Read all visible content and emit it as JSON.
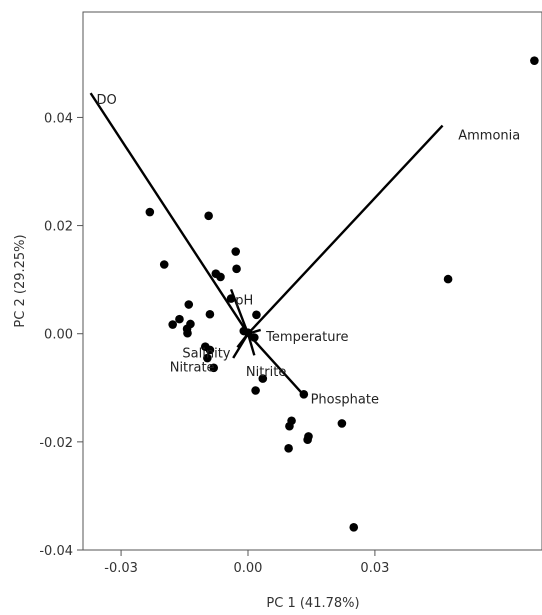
{
  "chart_data": {
    "type": "scatter",
    "title": "",
    "xlabel": "PC 1 (41.78%)",
    "ylabel": "PC 2 (29.25%)",
    "xlim": [
      -0.039,
      0.0695
    ],
    "ylim": [
      -0.04,
      0.0595
    ],
    "xticks": [
      -0.03,
      0.0,
      0.03
    ],
    "xtick_labels": [
      "-0.03",
      "0.00",
      "0.03"
    ],
    "yticks": [
      -0.04,
      -0.02,
      0.0,
      0.02,
      0.04
    ],
    "ytick_labels": [
      "-0.04",
      "-0.02",
      "0.00",
      "0.02",
      "0.04"
    ],
    "grid": false,
    "legend": "none",
    "colors": {
      "points": "#000000",
      "vectors": "#000000",
      "frame": "#555555"
    },
    "points": [
      {
        "x": 0.0677,
        "y": 0.0505
      },
      {
        "x": 0.0473,
        "y": 0.0101
      },
      {
        "x": -0.0232,
        "y": 0.0225
      },
      {
        "x": -0.0198,
        "y": 0.0128
      },
      {
        "x": -0.0093,
        "y": 0.0218
      },
      {
        "x": -0.0029,
        "y": 0.0152
      },
      {
        "x": -0.0027,
        "y": 0.012
      },
      {
        "x": -0.0076,
        "y": 0.0111
      },
      {
        "x": -0.0065,
        "y": 0.0105
      },
      {
        "x": -0.014,
        "y": 0.0054
      },
      {
        "x": -0.004,
        "y": 0.0065
      },
      {
        "x": -0.009,
        "y": 0.0036
      },
      {
        "x": 0.002,
        "y": 0.0035
      },
      {
        "x": -0.0162,
        "y": 0.0027
      },
      {
        "x": -0.0178,
        "y": 0.0017
      },
      {
        "x": -0.0136,
        "y": 0.0018
      },
      {
        "x": -0.0144,
        "y": 0.0009
      },
      {
        "x": -0.0143,
        "y": 0.0001
      },
      {
        "x": -0.001,
        "y": 0.0005
      },
      {
        "x": 0.0,
        "y": 0.0002
      },
      {
        "x": 0.0015,
        "y": -0.0007
      },
      {
        "x": -0.0101,
        "y": -0.0024
      },
      {
        "x": -0.009,
        "y": -0.003
      },
      {
        "x": -0.0096,
        "y": -0.0045
      },
      {
        "x": -0.0081,
        "y": -0.0063
      },
      {
        "x": 0.0035,
        "y": -0.0083
      },
      {
        "x": 0.0018,
        "y": -0.0105
      },
      {
        "x": 0.0132,
        "y": -0.0112
      },
      {
        "x": 0.0103,
        "y": -0.0161
      },
      {
        "x": 0.0098,
        "y": -0.0171
      },
      {
        "x": 0.0222,
        "y": -0.0166
      },
      {
        "x": 0.0143,
        "y": -0.019
      },
      {
        "x": 0.0141,
        "y": -0.0196
      },
      {
        "x": 0.0096,
        "y": -0.0212
      },
      {
        "x": 0.025,
        "y": -0.0358
      }
    ],
    "vectors": [
      {
        "name": "DO",
        "x": -0.0372,
        "y": 0.0445,
        "label_x": -0.0358,
        "label_y": 0.0434
      },
      {
        "name": "Ammonia",
        "x": 0.046,
        "y": 0.0385,
        "label_x": 0.0497,
        "label_y": 0.0368
      },
      {
        "name": "pH",
        "x": -0.004,
        "y": 0.0082,
        "label_x": -0.003,
        "label_y": 0.0063
      },
      {
        "name": "Temperature",
        "x": 0.003,
        "y": 0.0007,
        "label_x": 0.0043,
        "label_y": -0.0004
      },
      {
        "name": "Salinity",
        "x": -0.0025,
        "y": -0.0025,
        "label_x": -0.0155,
        "label_y": -0.0035
      },
      {
        "name": "Nitrate",
        "x": -0.0035,
        "y": -0.0045,
        "label_x": -0.0185,
        "label_y": -0.0061
      },
      {
        "name": "Nitrite",
        "x": 0.0015,
        "y": -0.004,
        "label_x": -0.0005,
        "label_y": -0.0069
      },
      {
        "name": "Phosphate",
        "x": 0.013,
        "y": -0.0112,
        "label_x": 0.0148,
        "label_y": -0.012
      }
    ]
  }
}
